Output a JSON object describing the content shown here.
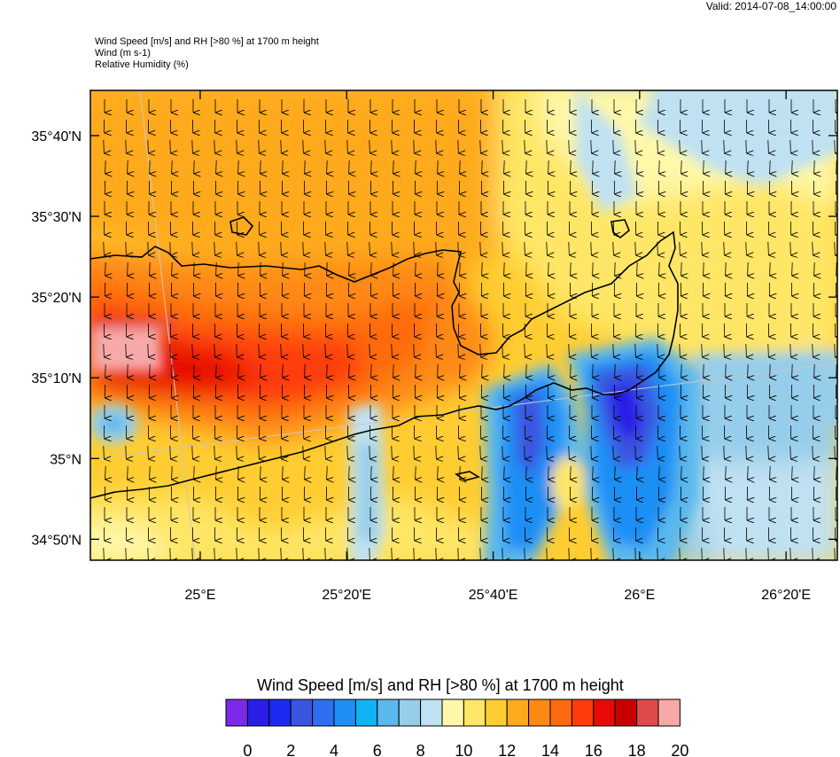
{
  "header": {
    "valid": "Valid: 2014-07-08_14:00:00",
    "line1": "Wind Speed [m/s] and RH [>80 %] at 1700 m height",
    "line2": "Wind   (m s-1)",
    "line3": "Relative Humidity   (%)"
  },
  "map": {
    "lon_range": [
      24.75,
      26.45
    ],
    "lat_range": [
      34.79,
      35.76
    ],
    "lat_labels": [
      "35°40'N",
      "35°30'N",
      "35°20'N",
      "35°10'N",
      "35°N",
      "34°50'N"
    ],
    "lat_values": [
      35.6667,
      35.5,
      35.3333,
      35.1667,
      35.0,
      34.8333
    ],
    "lon_labels": [
      "25°E",
      "25°20'E",
      "25°40'E",
      "26°E",
      "26°20'E"
    ],
    "lon_values": [
      25.0,
      25.3333,
      25.6667,
      26.0,
      26.3333
    ],
    "wind_direction": "south"
  },
  "colorbar": {
    "title": "Wind Speed [m/s] and RH [>80 %] at 1700 m height",
    "tick_labels": [
      "0",
      "2",
      "4",
      "6",
      "8",
      "10",
      "12",
      "14",
      "16",
      "18",
      "20"
    ],
    "colors": [
      "#7a2ae8",
      "#2a1ee8",
      "#1a2af0",
      "#3a55e0",
      "#2f6ef0",
      "#1f8ff5",
      "#0fb4f5",
      "#5ab8ee",
      "#96cdea",
      "#bfe1f2",
      "#fff8a8",
      "#ffe666",
      "#ffcd32",
      "#ffaa1e",
      "#ff8a12",
      "#ff6a10",
      "#ff3c0a",
      "#e80a06",
      "#c80000",
      "#e04a4a",
      "#f7a9a9"
    ]
  }
}
